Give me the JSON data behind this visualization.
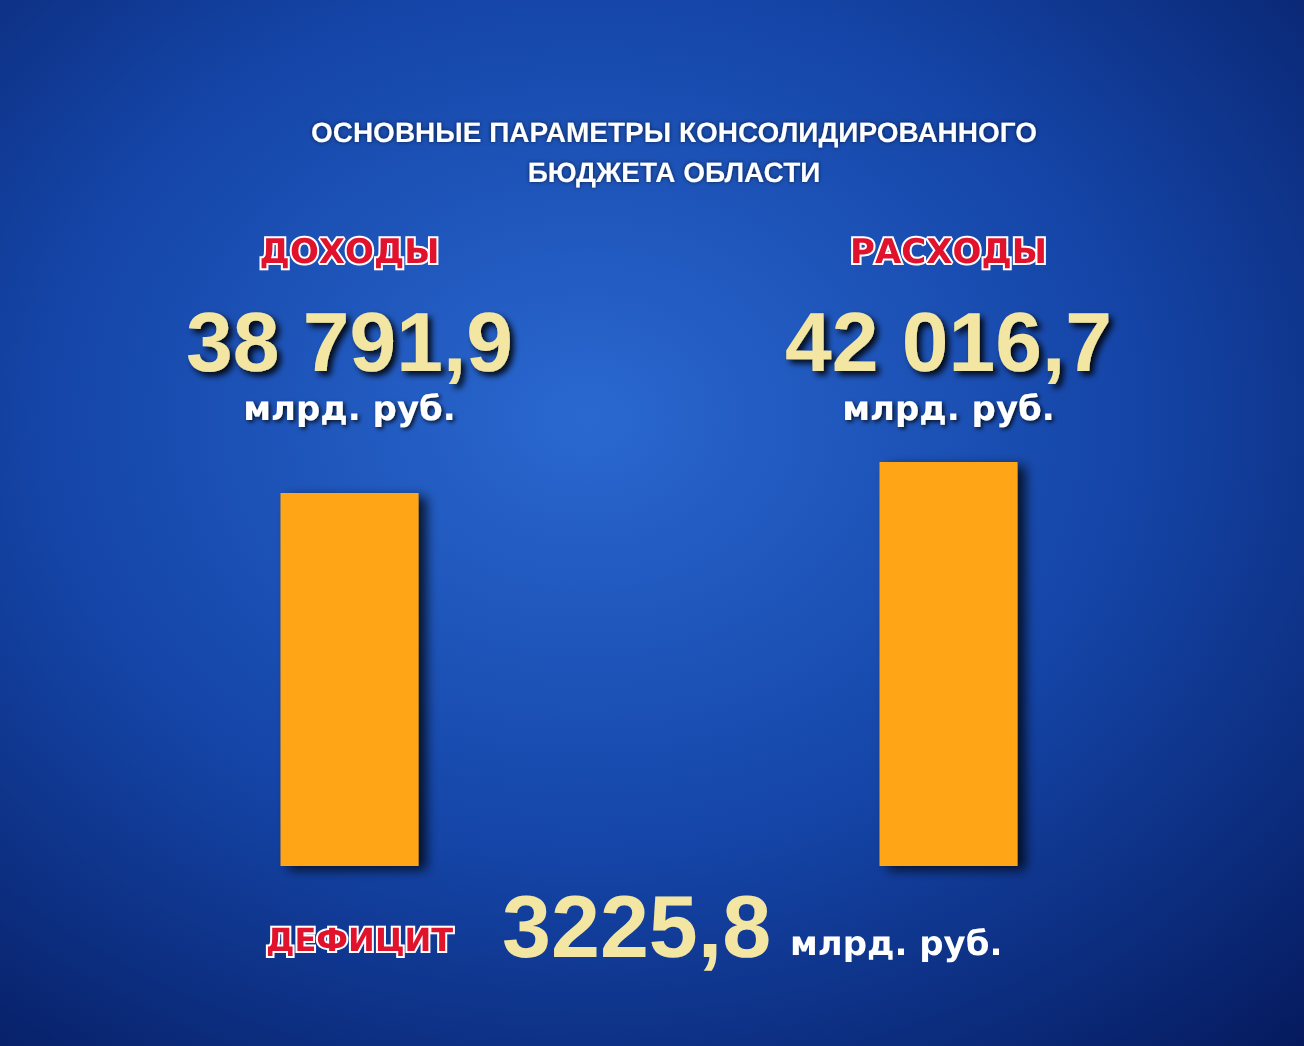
{
  "chart_data": {
    "type": "bar",
    "title": "ОСНОВНЫЕ ПАРАМЕТРЫ КОНСОЛИДИРОВАННОГО\nБЮДЖЕТА ОБЛАСТИ",
    "categories": [
      "ДОХОДЫ",
      "РАСХОДЫ"
    ],
    "values": [
      38791.9,
      42016.7
    ],
    "value_labels": [
      "38 791,9\nмлрд. руб.",
      "42 016,7\nмлрд. руб."
    ],
    "color": "#ffa514",
    "annotations": [
      "ДЕФИЦИТ",
      "3225,8",
      "млрд. руб."
    ]
  }
}
